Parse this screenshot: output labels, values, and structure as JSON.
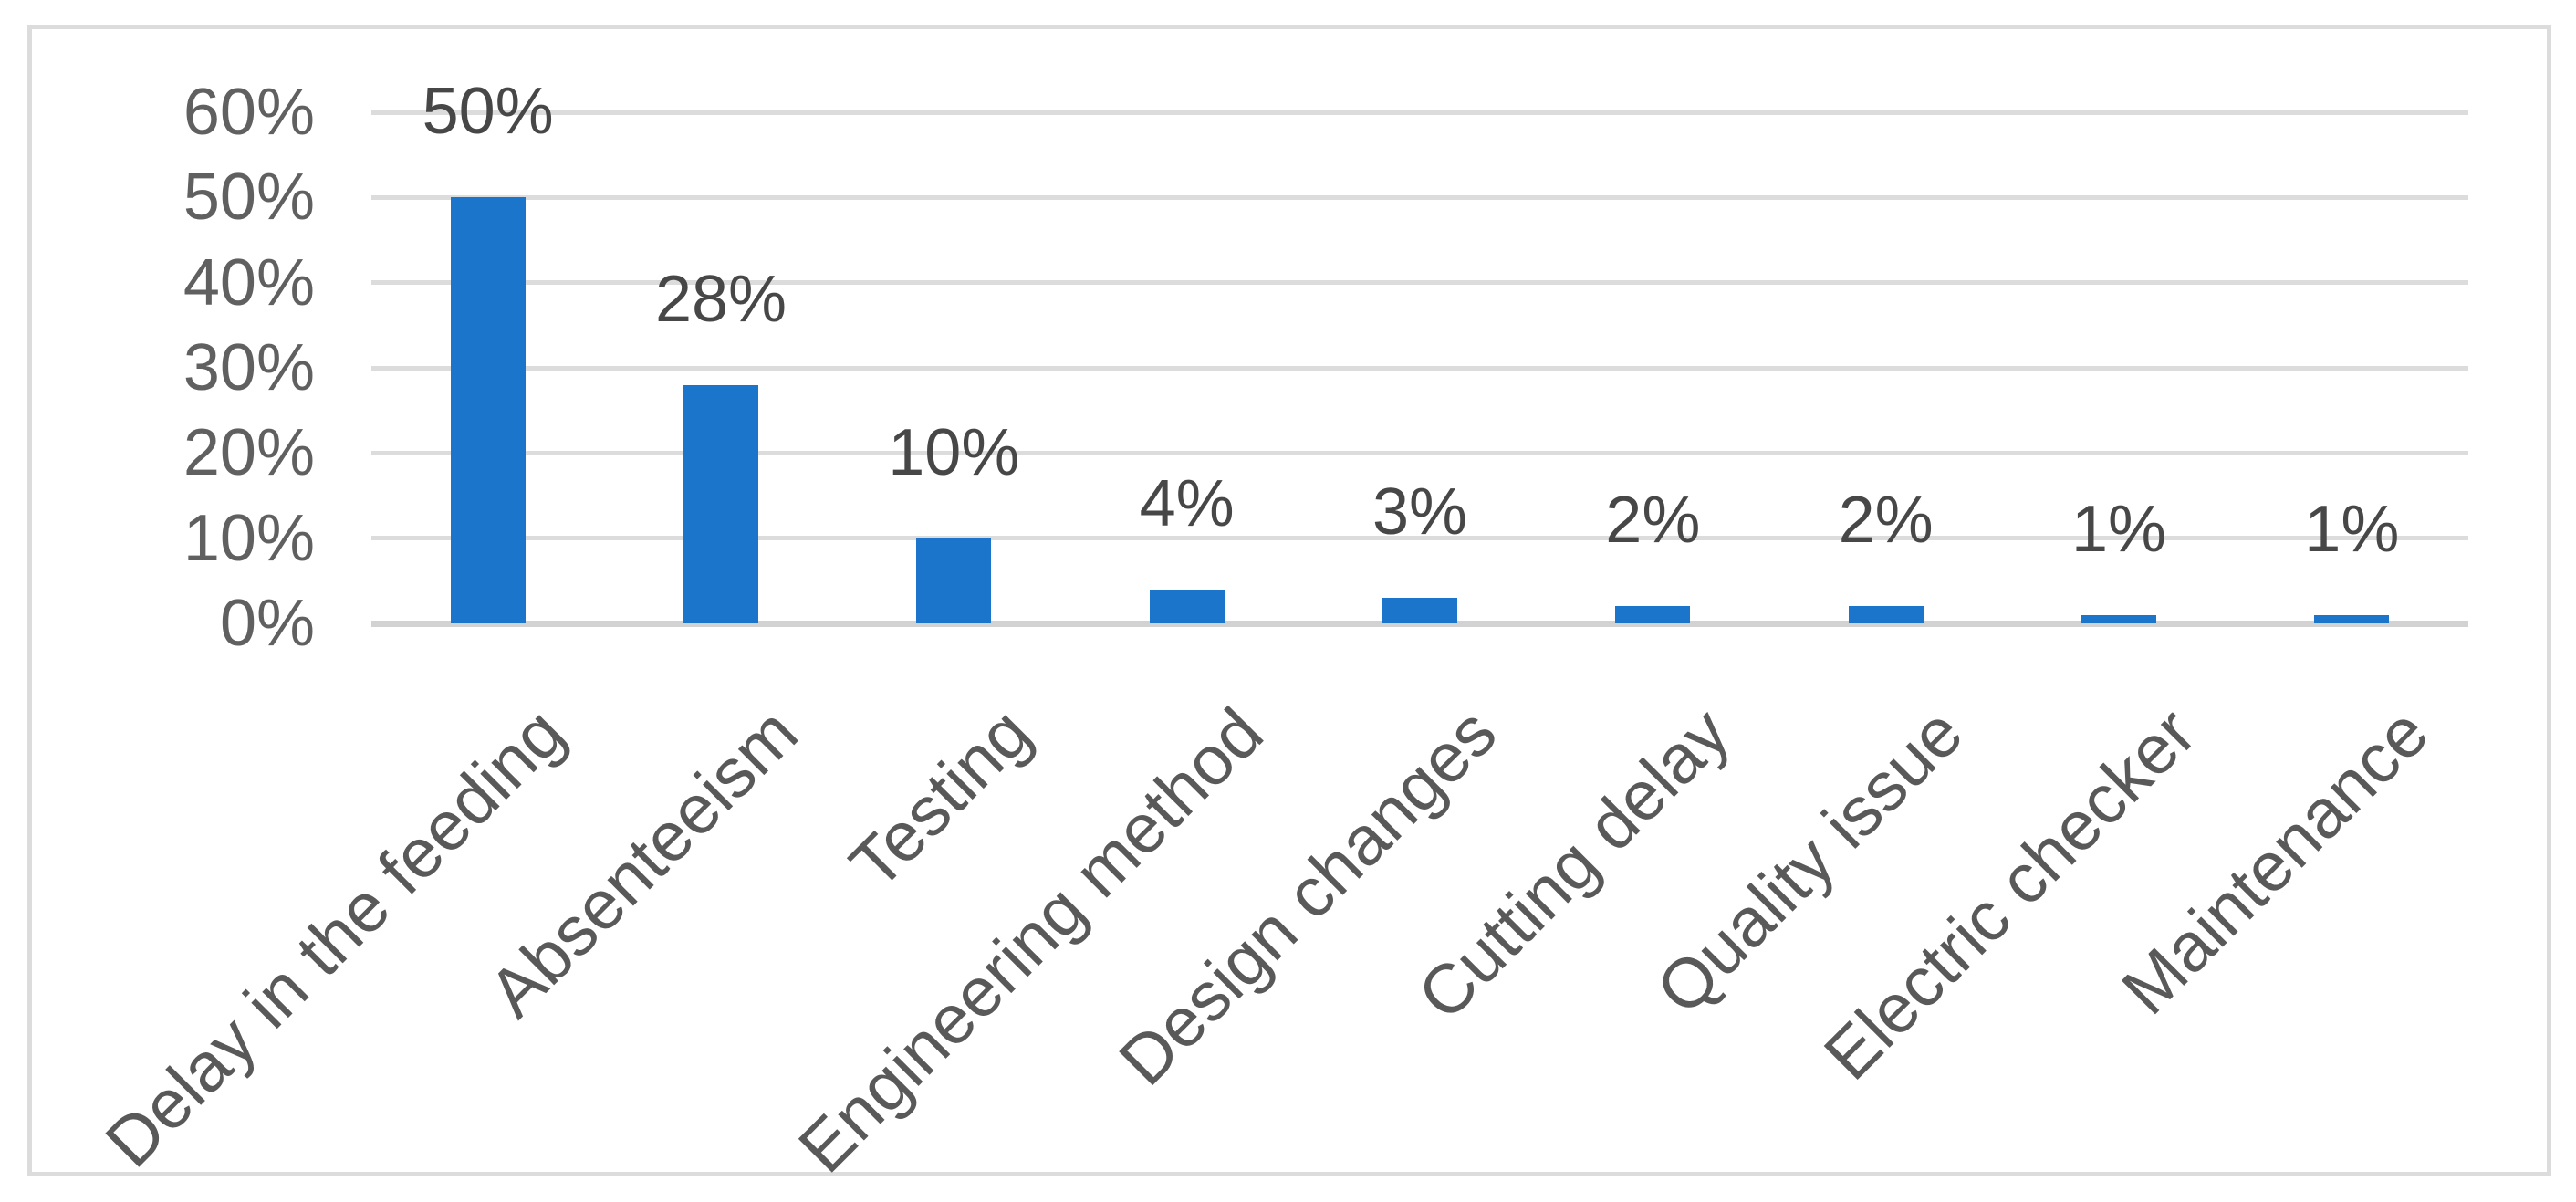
{
  "figure": {
    "background_color": "#ffffff",
    "border_color": "#dcdcdc",
    "title": ""
  },
  "chart_data": {
    "type": "bar",
    "title": "",
    "xlabel": "",
    "ylabel": "",
    "categories": [
      "Delay in the feeding",
      "Absenteeism",
      "Testing",
      "Engineering method",
      "Design changes",
      "Cutting delay",
      "Quality issue",
      "Electric checker",
      "Maintenance"
    ],
    "values": [
      50,
      28,
      10,
      4,
      3,
      2,
      2,
      1,
      1
    ],
    "data_labels": [
      "50%",
      "28%",
      "10%",
      "4%",
      "3%",
      "2%",
      "2%",
      "1%",
      "1%"
    ],
    "y_axis": {
      "min": 0,
      "max": 60,
      "step": 10,
      "tick_labels": [
        "0%",
        "10%",
        "20%",
        "30%",
        "40%",
        "50%",
        "60%"
      ]
    },
    "x_label_rotation_deg": 45,
    "grid": true,
    "legend": false,
    "colors": {
      "bar": "#1b76cb",
      "gridline": "#dcdcdc",
      "axis_line": "#d2d2d2",
      "y_tick_label": "#606060",
      "data_label": "#474747",
      "category_label": "#595959"
    }
  }
}
